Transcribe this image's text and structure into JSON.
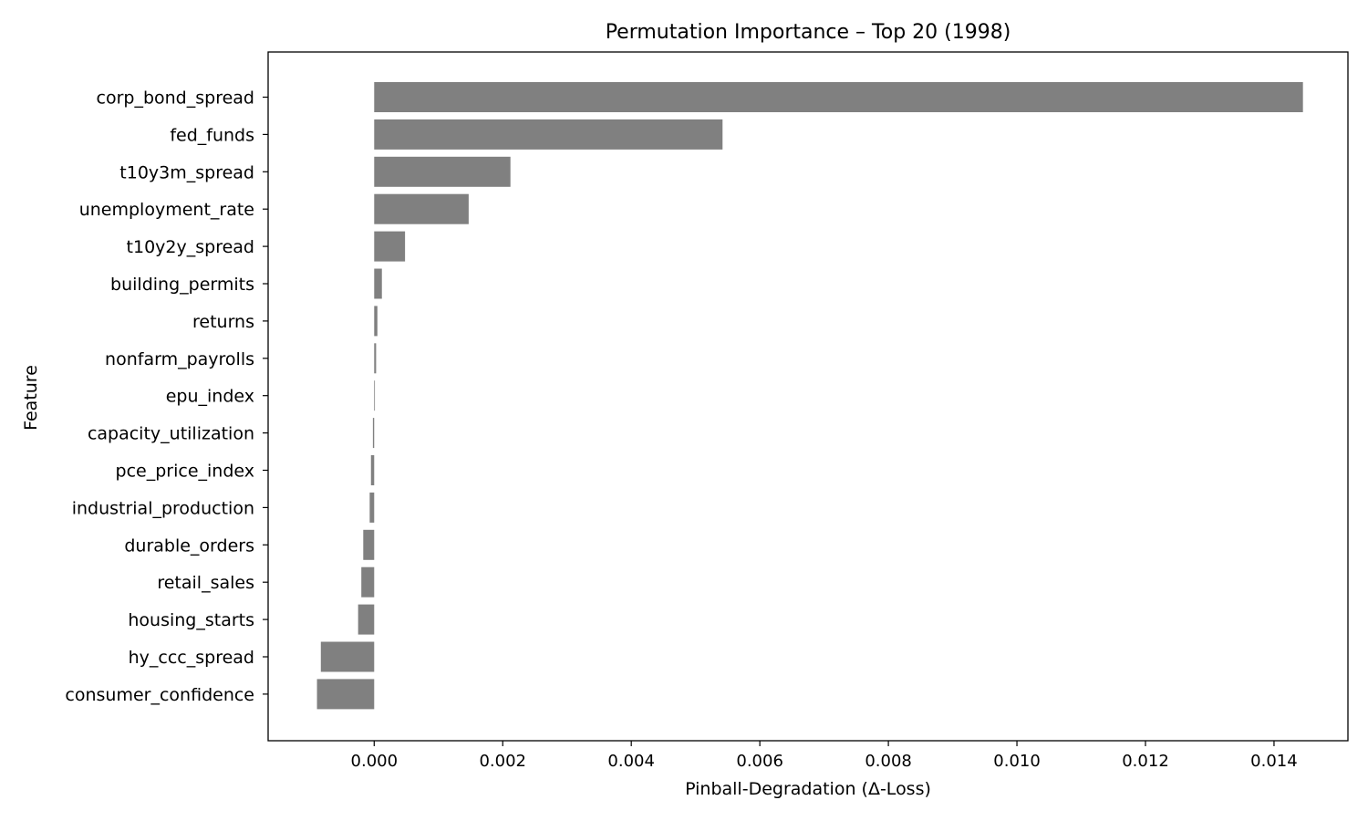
{
  "chart_data": {
    "type": "bar",
    "orientation": "horizontal",
    "title": "Permutation Importance – Top 20 (1998)",
    "xlabel": "Pinball-Degradation (Δ-Loss)",
    "ylabel": "Feature",
    "xlim": [
      -0.00165,
      0.01515
    ],
    "x_ticks": [
      "0.000",
      "0.002",
      "0.004",
      "0.006",
      "0.008",
      "0.010",
      "0.012",
      "0.014"
    ],
    "x_tick_values": [
      0,
      0.002,
      0.004,
      0.006,
      0.008,
      0.01,
      0.012,
      0.014
    ],
    "grid": false,
    "bar_color": "#808080",
    "categories": [
      "corp_bond_spread",
      "fed_funds",
      "t10y3m_spread",
      "unemployment_rate",
      "t10y2y_spread",
      "building_permits",
      "returns",
      "nonfarm_payrolls",
      "epu_index",
      "capacity_utilization",
      "pce_price_index",
      "industrial_production",
      "durable_orders",
      "retail_sales",
      "housing_starts",
      "hy_ccc_spread",
      "consumer_confidence"
    ],
    "values": [
      0.01445,
      0.00542,
      0.00212,
      0.00147,
      0.00048,
      0.00012,
      5e-05,
      3e-05,
      1e-05,
      -2e-05,
      -5e-05,
      -7e-05,
      -0.00017,
      -0.0002,
      -0.00025,
      -0.00083,
      -0.00089
    ]
  }
}
